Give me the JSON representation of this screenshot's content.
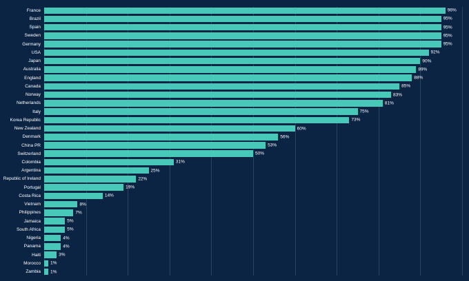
{
  "chart_data": {
    "type": "bar",
    "orientation": "horizontal",
    "title": "",
    "xlabel": "",
    "ylabel": "",
    "xlim": [
      0,
      100
    ],
    "grid": true,
    "gridline_step": 10,
    "value_suffix": "%",
    "categories": [
      "France",
      "Brazil",
      "Spain",
      "Sweden",
      "Germany",
      "USA",
      "Japan",
      "Australia",
      "England",
      "Canada",
      "Norway",
      "Netherlands",
      "Italy",
      "Korea Republic",
      "New Zealand",
      "Denmark",
      "China PR",
      "Switzerland",
      "Colombia",
      "Argentina",
      "Republic of Ireland",
      "Portugal",
      "Costa Rica",
      "Vietnam",
      "Philippines",
      "Jamaica",
      "South Africa",
      "Nigeria",
      "Panama",
      "Haiti",
      "Morocco",
      "Zambia"
    ],
    "values": [
      96,
      95,
      95,
      95,
      95,
      92,
      90,
      89,
      88,
      85,
      83,
      81,
      75,
      73,
      60,
      56,
      53,
      50,
      31,
      25,
      22,
      19,
      14,
      8,
      7,
      5,
      5,
      4,
      4,
      3,
      1,
      1
    ],
    "colors": {
      "background": "#0b2444",
      "bar": "#47c8b8",
      "label": "#ffffff",
      "gridline": "rgba(255,255,255,0.14)"
    }
  }
}
